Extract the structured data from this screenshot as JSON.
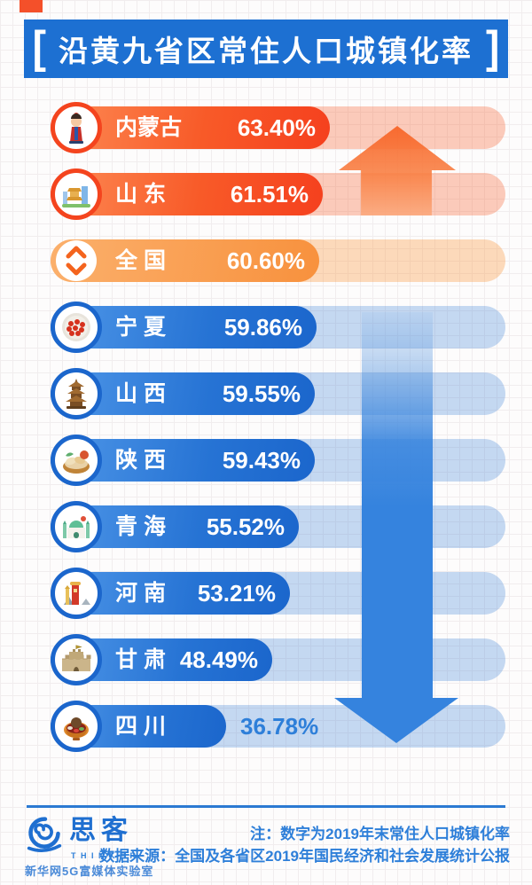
{
  "title": {
    "bracket_left": "[",
    "text": "沿黄九省区常住人口城镇化率",
    "bracket_right": "]"
  },
  "chart_data": {
    "type": "bar",
    "orientation": "horizontal",
    "title": "沿黄九省区常住人口城镇化率",
    "unit": "%",
    "xlim": [
      0,
      70
    ],
    "categories": [
      "内蒙古",
      "山东",
      "全国",
      "宁夏",
      "山西",
      "陕西",
      "青海",
      "河南",
      "甘肃",
      "四川"
    ],
    "values": [
      63.4,
      61.51,
      60.6,
      59.86,
      59.55,
      59.43,
      55.52,
      53.21,
      48.49,
      36.78
    ],
    "annotations": [
      "up-arrow-above-national",
      "down-arrow-below-national"
    ],
    "rows": [
      {
        "label": "内蒙古",
        "value": 63.4,
        "display": "63.40%",
        "style": "orange",
        "icon": "mongolian-figure-icon",
        "value_outside": false
      },
      {
        "label": "山 东",
        "value": 61.51,
        "display": "61.51%",
        "style": "orange",
        "icon": "city-landmarks-icon",
        "value_outside": false
      },
      {
        "label": "全 国",
        "value": 60.6,
        "display": "60.60%",
        "style": "light-orange",
        "icon": "up-down-arrows-icon",
        "value_outside": false
      },
      {
        "label": "宁 夏",
        "value": 59.86,
        "display": "59.86%",
        "style": "blue",
        "icon": "goji-berries-icon",
        "value_outside": false
      },
      {
        "label": "山 西",
        "value": 59.55,
        "display": "59.55%",
        "style": "blue",
        "icon": "pagoda-icon",
        "value_outside": false
      },
      {
        "label": "陕 西",
        "value": 59.43,
        "display": "59.43%",
        "style": "blue",
        "icon": "food-basket-icon",
        "value_outside": false
      },
      {
        "label": "青 海",
        "value": 55.52,
        "display": "55.52%",
        "style": "blue",
        "icon": "mosque-icon",
        "value_outside": false
      },
      {
        "label": "河 南",
        "value": 53.21,
        "display": "53.21%",
        "style": "blue",
        "icon": "tower-icon",
        "value_outside": false
      },
      {
        "label": "甘 肃",
        "value": 48.49,
        "display": "48.49%",
        "style": "blue",
        "icon": "fortress-icon",
        "value_outside": false
      },
      {
        "label": "四 川",
        "value": 36.78,
        "display": "36.78%",
        "style": "blue",
        "icon": "hotpot-icon",
        "value_outside": true
      }
    ]
  },
  "footer": {
    "logo_name": "思客",
    "logo_subtitle": "THINKER",
    "logo_org": "新华网5G富媒体实验室",
    "note1": "注：数字为2019年末常住人口城镇化率",
    "note2": "数据来源：全国及各省区2019年国民经济和社会发展统计公报"
  },
  "colors": {
    "banner_blue": "#1d70d2",
    "bar_orange": "#f85a28",
    "bar_light_orange": "#f8913d",
    "bar_blue": "#2673d4",
    "arrow_up_orange": "#f75d1d",
    "arrow_down_blue": "#3583de",
    "footer_text_blue": "#2e7fd9"
  }
}
